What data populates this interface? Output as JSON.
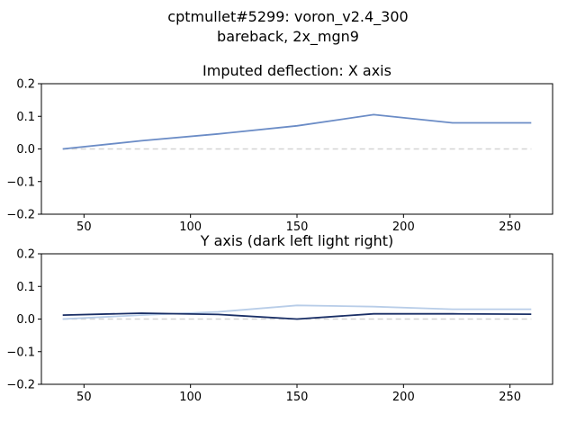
{
  "figure": {
    "suptitle_line1": "cptmullet#5299: voron_v2.4_300",
    "suptitle_line2": "bareback, 2x_mgn9"
  },
  "chart_data": [
    {
      "type": "line",
      "title": "Imputed deflection: X axis",
      "xlim": [
        30,
        270
      ],
      "ylim": [
        -0.2,
        0.2
      ],
      "xticks": [
        50,
        100,
        150,
        200,
        250
      ],
      "yticks": [
        -0.2,
        -0.1,
        0.0,
        0.1,
        0.2
      ],
      "xtick_labels": [
        "50",
        "100",
        "150",
        "200",
        "250"
      ],
      "ytick_labels": [
        "−0.2",
        "−0.1",
        "0.0",
        "0.1",
        "0.2"
      ],
      "grid": false,
      "reference_line": {
        "y": 0.0,
        "style": "dashed",
        "color": "#d3d3d3"
      },
      "series": [
        {
          "color": "#6b8cc6",
          "x": [
            40,
            77,
            113,
            150,
            186,
            223,
            260
          ],
          "y": [
            0.0,
            0.025,
            0.046,
            0.071,
            0.105,
            0.08,
            0.08
          ]
        }
      ]
    },
    {
      "type": "line",
      "title": "Y axis (dark left light right)",
      "xlim": [
        30,
        270
      ],
      "ylim": [
        -0.2,
        0.2
      ],
      "xticks": [
        50,
        100,
        150,
        200,
        250
      ],
      "yticks": [
        -0.2,
        -0.1,
        0.0,
        0.1,
        0.2
      ],
      "xtick_labels": [
        "50",
        "100",
        "150",
        "200",
        "250"
      ],
      "ytick_labels": [
        "−0.2",
        "−0.1",
        "0.0",
        "0.1",
        "0.2"
      ],
      "grid": false,
      "reference_line": {
        "y": 0.0,
        "style": "dashed",
        "color": "#d3d3d3"
      },
      "series": [
        {
          "color": "#b8cde8",
          "x": [
            40,
            77,
            113,
            150,
            186,
            223,
            260
          ],
          "y": [
            0.0,
            0.012,
            0.022,
            0.042,
            0.038,
            0.03,
            0.03
          ]
        },
        {
          "color": "#1a2f66",
          "x": [
            40,
            77,
            113,
            150,
            186,
            223,
            260
          ],
          "y": [
            0.012,
            0.018,
            0.014,
            0.0,
            0.016,
            0.016,
            0.015
          ]
        }
      ]
    }
  ]
}
